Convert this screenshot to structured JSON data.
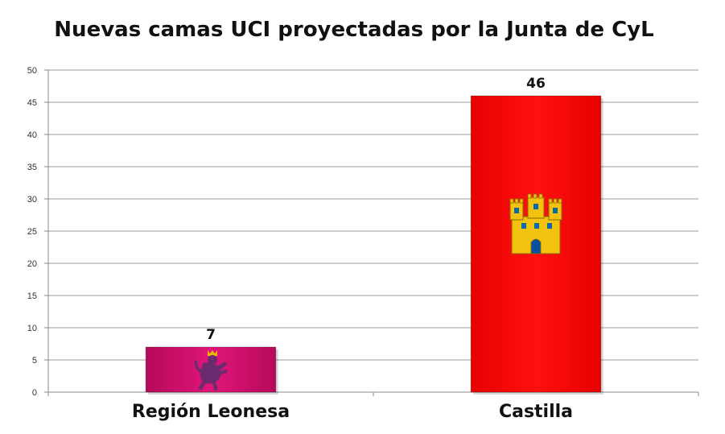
{
  "chart_data": {
    "type": "bar",
    "title": "Nuevas camas UCI proyectadas por la Junta de CyL",
    "xlabel": "",
    "ylabel": "",
    "categories": [
      "Región Leonesa",
      "Castilla"
    ],
    "values": [
      7,
      46
    ],
    "data_labels": [
      "7",
      "46"
    ],
    "ylim": [
      0,
      50
    ],
    "yticks": [
      0,
      5,
      10,
      15,
      20,
      25,
      30,
      35,
      40,
      45,
      50
    ],
    "grid": true,
    "legend": "none",
    "colors": [
      "#d4106c",
      "#ff0000"
    ],
    "bar_emblems": [
      "lion-emblem",
      "castle-emblem"
    ]
  }
}
